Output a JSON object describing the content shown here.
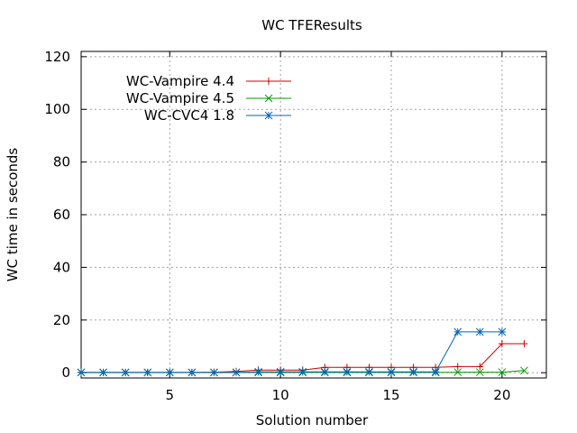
{
  "chart_data": {
    "type": "line",
    "title": "WC TFEResults",
    "xlabel": "Solution number",
    "ylabel": "WC time in seconds",
    "xlim": [
      1,
      22
    ],
    "ylim": [
      -2,
      122
    ],
    "xticks": [
      5,
      10,
      15,
      20
    ],
    "yticks": [
      0,
      20,
      40,
      60,
      80,
      100,
      120
    ],
    "grid": true,
    "legend_position": "top-left",
    "series": [
      {
        "name": "WC-Vampire 4.4",
        "color": "#cc0000",
        "marker": "plus",
        "x": [
          1,
          2,
          3,
          4,
          5,
          6,
          7,
          8,
          9,
          10,
          11,
          12,
          13,
          14,
          15,
          16,
          17,
          18,
          19,
          20,
          21
        ],
        "y": [
          0.1,
          0.1,
          0.1,
          0.1,
          0.1,
          0.1,
          0.2,
          0.5,
          1.0,
          1.0,
          1.0,
          2.0,
          2.0,
          2.0,
          2.0,
          2.0,
          2.0,
          2.3,
          2.3,
          11.0,
          11.0
        ]
      },
      {
        "name": "WC-Vampire 4.5",
        "color": "#009900",
        "marker": "cross",
        "x": [
          1,
          2,
          3,
          4,
          5,
          6,
          7,
          8,
          9,
          10,
          11,
          12,
          13,
          14,
          15,
          16,
          17,
          18,
          19,
          20,
          21
        ],
        "y": [
          0.1,
          0.1,
          0.1,
          0.1,
          0.1,
          0.1,
          0.1,
          0.1,
          0.1,
          0.1,
          0.1,
          0.1,
          0.1,
          0.1,
          0.1,
          0.1,
          0.1,
          0.2,
          0.2,
          0.2,
          0.8
        ]
      },
      {
        "name": "WC-CVC4 1.8",
        "color": "#0066bb",
        "marker": "star",
        "x": [
          1,
          2,
          3,
          4,
          5,
          6,
          7,
          8,
          9,
          10,
          11,
          12,
          13,
          14,
          15,
          16,
          17,
          18,
          19,
          20
        ],
        "y": [
          0.1,
          0.1,
          0.1,
          0.1,
          0.1,
          0.1,
          0.1,
          0.1,
          0.3,
          0.3,
          0.3,
          0.3,
          0.3,
          0.3,
          0.3,
          0.3,
          0.3,
          15.5,
          15.5,
          15.5
        ]
      }
    ]
  }
}
